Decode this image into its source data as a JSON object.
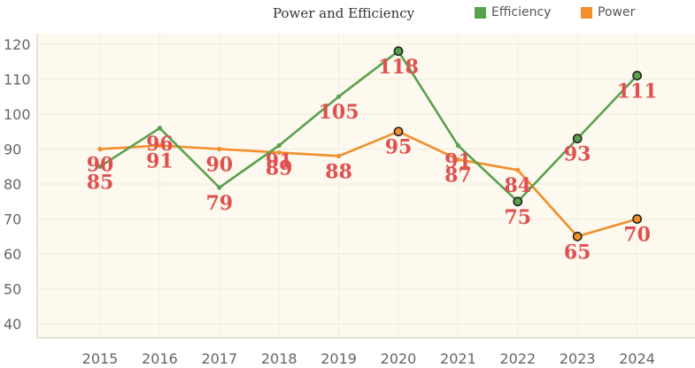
{
  "chart_data": {
    "type": "line",
    "title": "Power and Efficiency",
    "categories": [
      "2015",
      "2016",
      "2017",
      "2018",
      "2019",
      "2020",
      "2021",
      "2022",
      "2023",
      "2024"
    ],
    "series": [
      {
        "name": "Efficiency",
        "color": "#59a14f",
        "values": [
          85,
          96,
          79,
          91,
          105,
          118,
          91,
          75,
          93,
          111
        ]
      },
      {
        "name": "Power",
        "color": "#f28e2b",
        "values": [
          90,
          91,
          90,
          89,
          88,
          95,
          87,
          84,
          65,
          70
        ]
      }
    ],
    "highlighted_points": {
      "Efficiency": [
        "2020",
        "2022",
        "2023",
        "2024"
      ],
      "Power": [
        "2020",
        "2023",
        "2024"
      ]
    },
    "trend_lines": "dashed polynomial fits per series (strong and faint)",
    "y_ticks": [
      40,
      50,
      60,
      70,
      80,
      90,
      100,
      110,
      120
    ],
    "ylim": [
      36,
      123
    ],
    "xlabel": "",
    "ylabel": "",
    "grid": true,
    "legend_position": "top-right",
    "background_color": "#fdf9ee"
  }
}
